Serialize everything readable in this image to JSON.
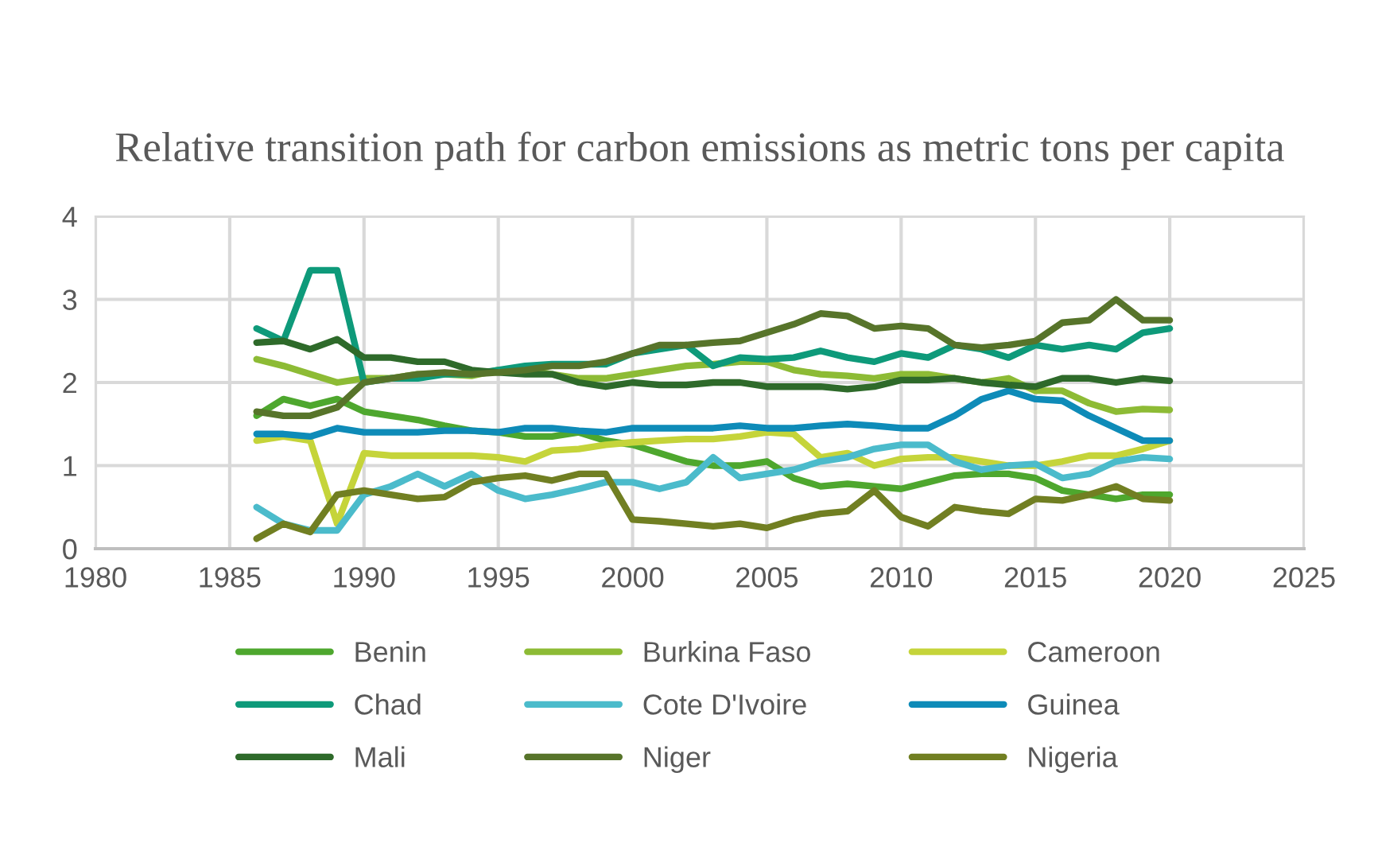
{
  "chart_data": {
    "type": "line",
    "title": "Relative transition path for carbon emissions as metric tons per capita",
    "x": [
      1986,
      1987,
      1988,
      1989,
      1990,
      1991,
      1992,
      1993,
      1994,
      1995,
      1996,
      1997,
      1998,
      1999,
      2000,
      2001,
      2002,
      2003,
      2004,
      2005,
      2006,
      2007,
      2008,
      2009,
      2010,
      2011,
      2012,
      2013,
      2014,
      2015,
      2016,
      2017,
      2018,
      2019,
      2020
    ],
    "xlim": [
      1980,
      2025
    ],
    "xticks": [
      1980,
      1985,
      1990,
      1995,
      2000,
      2005,
      2010,
      2015,
      2020,
      2025
    ],
    "ylim": [
      0,
      4
    ],
    "yticks": [
      0,
      1,
      2,
      3,
      4
    ],
    "grid": true,
    "legend": "bottom",
    "marker": "none",
    "line_style": "solid",
    "series": [
      {
        "name": "Benin",
        "color": "#4ea72e",
        "values": [
          1.6,
          1.8,
          1.72,
          1.8,
          1.65,
          1.6,
          1.55,
          1.48,
          1.42,
          1.4,
          1.35,
          1.35,
          1.4,
          1.3,
          1.25,
          1.15,
          1.05,
          1.0,
          1.0,
          1.05,
          0.85,
          0.75,
          0.78,
          0.75,
          0.72,
          0.8,
          0.88,
          0.9,
          0.9,
          0.85,
          0.7,
          0.65,
          0.6,
          0.65,
          0.65
        ]
      },
      {
        "name": "Burkina Faso",
        "color": "#8dbb35",
        "values": [
          2.28,
          2.2,
          2.1,
          2.0,
          2.05,
          2.05,
          2.1,
          2.1,
          2.08,
          2.15,
          2.15,
          2.1,
          2.05,
          2.05,
          2.1,
          2.15,
          2.2,
          2.22,
          2.25,
          2.25,
          2.15,
          2.1,
          2.08,
          2.05,
          2.1,
          2.1,
          2.05,
          2.0,
          2.05,
          1.9,
          1.9,
          1.75,
          1.65,
          1.68,
          1.67
        ]
      },
      {
        "name": "Cameroon",
        "color": "#c5d43a",
        "values": [
          1.3,
          1.35,
          1.3,
          0.3,
          1.15,
          1.12,
          1.12,
          1.12,
          1.12,
          1.1,
          1.05,
          1.18,
          1.2,
          1.25,
          1.28,
          1.3,
          1.32,
          1.32,
          1.35,
          1.4,
          1.38,
          1.1,
          1.15,
          1.0,
          1.08,
          1.1,
          1.1,
          1.05,
          1.0,
          1.0,
          1.05,
          1.12,
          1.12,
          1.2,
          1.3
        ]
      },
      {
        "name": "Chad",
        "color": "#0e9a7a",
        "values": [
          2.65,
          2.5,
          3.35,
          3.35,
          2.0,
          2.05,
          2.05,
          2.1,
          2.1,
          2.15,
          2.2,
          2.22,
          2.22,
          2.22,
          2.35,
          2.4,
          2.45,
          2.2,
          2.3,
          2.28,
          2.3,
          2.38,
          2.3,
          2.25,
          2.35,
          2.3,
          2.45,
          2.4,
          2.3,
          2.45,
          2.4,
          2.45,
          2.4,
          2.6,
          2.65
        ]
      },
      {
        "name": "Cote D'Ivoire",
        "color": "#4bbbcb",
        "values": [
          0.5,
          0.3,
          0.22,
          0.22,
          0.65,
          0.75,
          0.9,
          0.75,
          0.9,
          0.7,
          0.6,
          0.65,
          0.72,
          0.8,
          0.8,
          0.72,
          0.8,
          1.1,
          0.85,
          0.9,
          0.95,
          1.05,
          1.1,
          1.2,
          1.25,
          1.25,
          1.05,
          0.95,
          1.0,
          1.02,
          0.85,
          0.9,
          1.05,
          1.1,
          1.08
        ]
      },
      {
        "name": "Guinea",
        "color": "#0e8bb8",
        "values": [
          1.38,
          1.38,
          1.35,
          1.45,
          1.4,
          1.4,
          1.4,
          1.42,
          1.42,
          1.4,
          1.45,
          1.45,
          1.42,
          1.4,
          1.45,
          1.45,
          1.45,
          1.45,
          1.48,
          1.45,
          1.45,
          1.48,
          1.5,
          1.48,
          1.45,
          1.45,
          1.6,
          1.8,
          1.9,
          1.8,
          1.78,
          1.6,
          1.45,
          1.3,
          1.3
        ]
      },
      {
        "name": "Mali",
        "color": "#2e6a2a",
        "values": [
          2.48,
          2.5,
          2.4,
          2.52,
          2.3,
          2.3,
          2.25,
          2.25,
          2.15,
          2.12,
          2.1,
          2.1,
          2.0,
          1.95,
          2.0,
          1.97,
          1.97,
          2.0,
          2.0,
          1.95,
          1.95,
          1.95,
          1.92,
          1.95,
          2.03,
          2.03,
          2.05,
          2.0,
          1.97,
          1.95,
          2.05,
          2.05,
          2.0,
          2.05,
          2.02
        ]
      },
      {
        "name": "Niger",
        "color": "#57742a",
        "values": [
          1.65,
          1.6,
          1.6,
          1.7,
          2.0,
          2.05,
          2.1,
          2.12,
          2.1,
          2.12,
          2.15,
          2.2,
          2.2,
          2.25,
          2.35,
          2.45,
          2.45,
          2.48,
          2.5,
          2.6,
          2.7,
          2.83,
          2.8,
          2.65,
          2.68,
          2.65,
          2.45,
          2.42,
          2.45,
          2.5,
          2.72,
          2.75,
          3.0,
          2.75,
          2.75
        ]
      },
      {
        "name": "Nigeria",
        "color": "#717f22",
        "values": [
          0.12,
          0.3,
          0.2,
          0.65,
          0.7,
          0.65,
          0.6,
          0.62,
          0.8,
          0.85,
          0.88,
          0.82,
          0.9,
          0.9,
          0.35,
          0.33,
          0.3,
          0.27,
          0.3,
          0.25,
          0.35,
          0.42,
          0.45,
          0.7,
          0.38,
          0.27,
          0.5,
          0.45,
          0.42,
          0.6,
          0.58,
          0.65,
          0.75,
          0.6,
          0.58
        ]
      }
    ]
  }
}
